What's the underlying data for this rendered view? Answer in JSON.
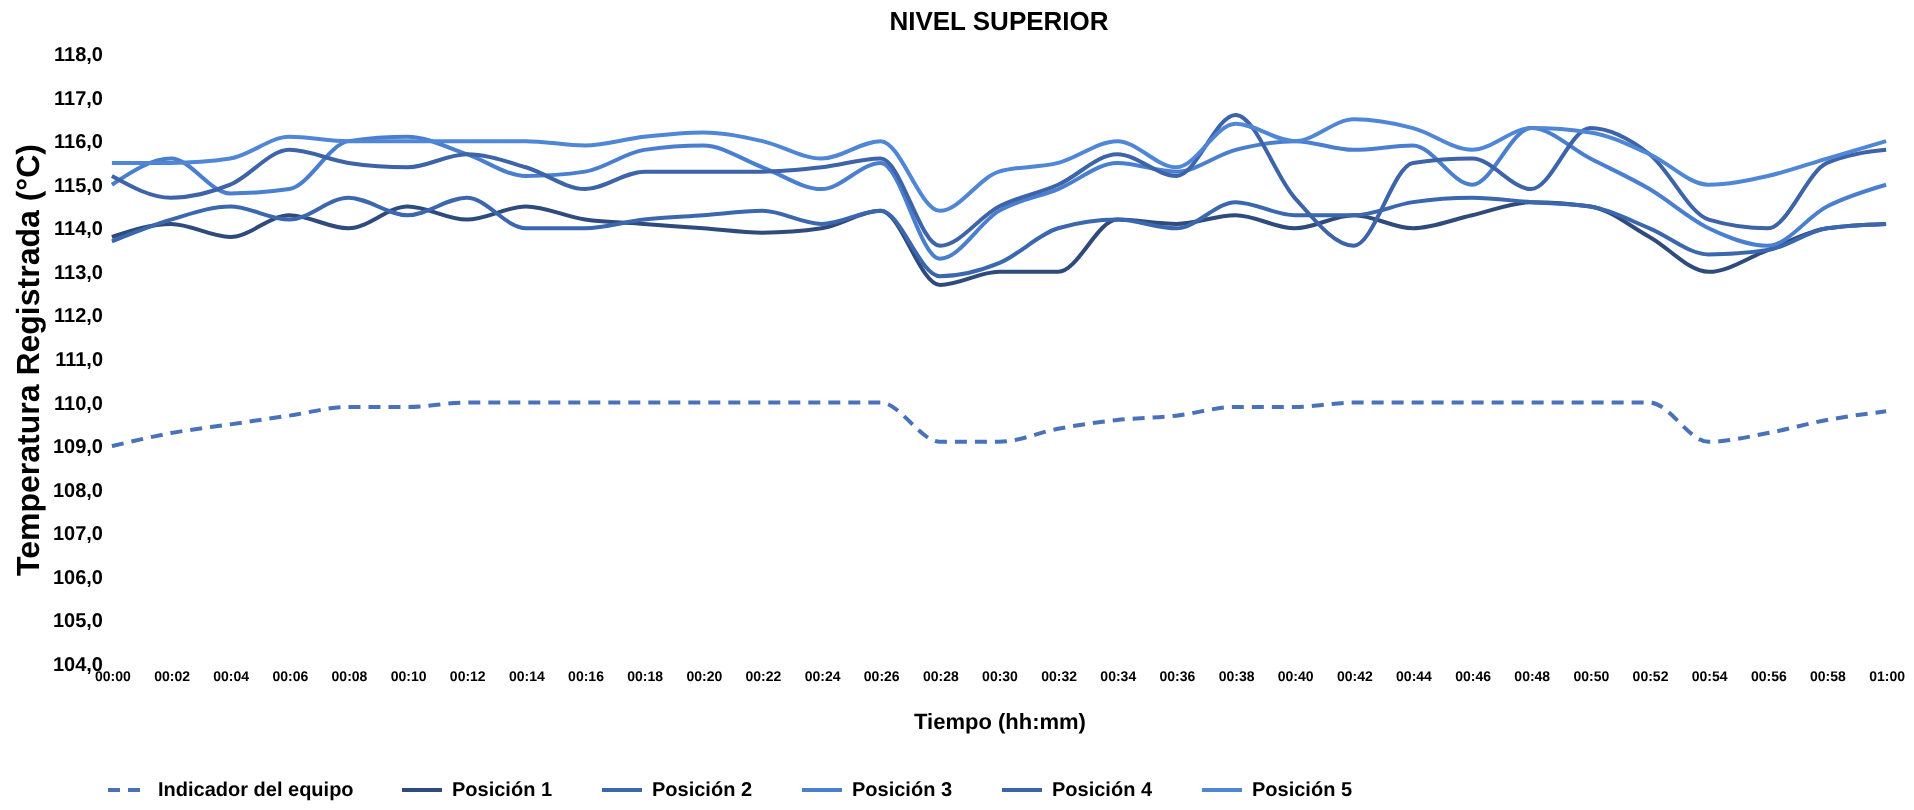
{
  "chart_data": {
    "type": "line",
    "title": "NIVEL SUPERIOR",
    "xlabel": "Tiempo (hh:mm)",
    "ylabel": "Temperatura Registrada (°C)",
    "categories": [
      "00:00",
      "00:02",
      "00:04",
      "00:06",
      "00:08",
      "00:10",
      "00:12",
      "00:14",
      "00:16",
      "00:18",
      "00:20",
      "00:22",
      "00:24",
      "00:26",
      "00:28",
      "00:30",
      "00:32",
      "00:34",
      "00:36",
      "00:38",
      "00:40",
      "00:42",
      "00:44",
      "00:46",
      "00:48",
      "00:50",
      "00:52",
      "00:54",
      "00:56",
      "00:58",
      "01:00"
    ],
    "series": [
      {
        "name": "Indicador del equipo",
        "color": "#4a72b8",
        "line_style": "dashed",
        "values": [
          109.0,
          109.3,
          109.5,
          109.7,
          109.9,
          109.9,
          110.0,
          110.0,
          110.0,
          110.0,
          110.0,
          110.0,
          110.0,
          110.0,
          109.1,
          109.1,
          109.4,
          109.6,
          109.7,
          109.9,
          109.9,
          110.0,
          110.0,
          110.0,
          110.0,
          110.0,
          110.0,
          109.1,
          109.3,
          109.6,
          109.8
        ]
      },
      {
        "name": "Posición 1",
        "color": "#2f4b7c",
        "line_style": "solid",
        "values": [
          113.8,
          114.1,
          113.8,
          114.3,
          114.0,
          114.5,
          114.2,
          114.5,
          114.2,
          114.1,
          114.0,
          113.9,
          114.0,
          114.4,
          112.7,
          113.0,
          113.0,
          114.2,
          114.1,
          114.3,
          114.0,
          114.3,
          114.0,
          114.3,
          114.6,
          114.5,
          113.8,
          113.0,
          113.5,
          114.0,
          114.1
        ]
      },
      {
        "name": "Posición 2",
        "color": "#3a67ad",
        "line_style": "solid",
        "values": [
          113.7,
          114.2,
          114.5,
          114.2,
          114.7,
          114.3,
          114.7,
          114.0,
          114.0,
          114.2,
          114.3,
          114.4,
          114.1,
          114.4,
          112.9,
          113.2,
          114.0,
          114.2,
          114.0,
          114.6,
          114.3,
          114.3,
          114.6,
          114.7,
          114.6,
          114.5,
          114.0,
          113.4,
          113.5,
          114.0,
          114.1
        ]
      },
      {
        "name": "Posición 3",
        "color": "#4a7fcf",
        "line_style": "solid",
        "values": [
          115.0,
          115.6,
          114.8,
          114.9,
          116.0,
          116.1,
          115.7,
          115.2,
          115.3,
          115.8,
          115.9,
          115.4,
          114.9,
          115.5,
          113.3,
          114.4,
          114.9,
          115.5,
          115.3,
          115.8,
          116.0,
          115.8,
          115.9,
          115.0,
          116.3,
          115.6,
          114.9,
          114.0,
          113.6,
          114.5,
          115.0
        ]
      },
      {
        "name": "Posición 4",
        "color": "#3d63a8",
        "line_style": "solid",
        "values": [
          115.2,
          114.7,
          115.0,
          115.8,
          115.5,
          115.4,
          115.7,
          115.4,
          114.9,
          115.3,
          115.3,
          115.3,
          115.4,
          115.6,
          113.6,
          114.5,
          115.0,
          115.7,
          115.2,
          116.6,
          114.7,
          113.6,
          115.5,
          115.6,
          114.9,
          116.3,
          115.7,
          114.2,
          114.0,
          115.5,
          115.8
        ]
      },
      {
        "name": "Posición 5",
        "color": "#4f86d6",
        "line_style": "solid",
        "values": [
          115.5,
          115.5,
          115.6,
          116.1,
          116.0,
          116.0,
          116.0,
          116.0,
          115.9,
          116.1,
          116.2,
          116.0,
          115.6,
          116.0,
          114.4,
          115.3,
          115.5,
          116.0,
          115.4,
          116.4,
          116.0,
          116.5,
          116.3,
          115.8,
          116.3,
          116.2,
          115.7,
          115.0,
          115.2,
          115.6,
          116.0
        ]
      }
    ],
    "ylim": [
      104,
      118
    ],
    "yticks": [
      {
        "value": 104,
        "label": "104,0"
      },
      {
        "value": 105,
        "label": "105,0"
      },
      {
        "value": 106,
        "label": "106,0"
      },
      {
        "value": 107,
        "label": "107,0"
      },
      {
        "value": 108,
        "label": "108,0"
      },
      {
        "value": 109,
        "label": "109,0"
      },
      {
        "value": 110,
        "label": "110,0"
      },
      {
        "value": 111,
        "label": "111,0"
      },
      {
        "value": 112,
        "label": "112,0"
      },
      {
        "value": 113,
        "label": "113,0"
      },
      {
        "value": 114,
        "label": "114,0"
      },
      {
        "value": 115,
        "label": "115,0"
      },
      {
        "value": 116,
        "label": "116,0"
      },
      {
        "value": 117,
        "label": "117,0"
      },
      {
        "value": 118,
        "label": "118,0"
      }
    ],
    "grid": false,
    "legend": "bottom",
    "marker": "none"
  }
}
